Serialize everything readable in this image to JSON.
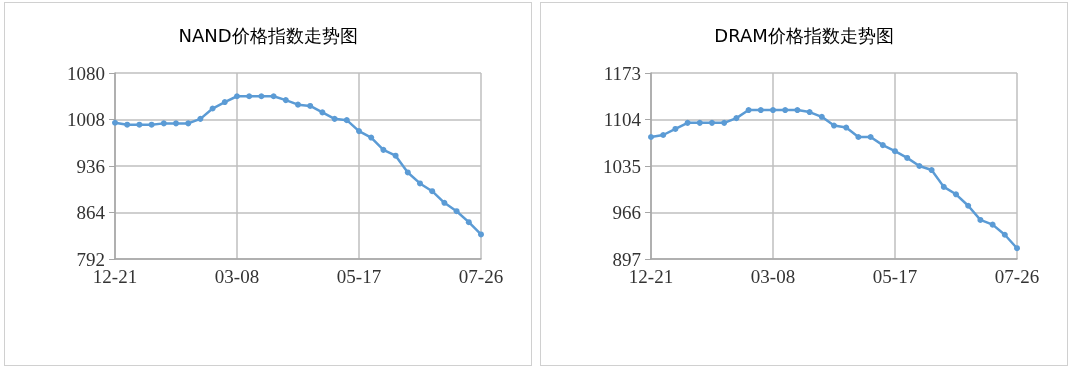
{
  "chart_data": [
    {
      "type": "line",
      "title": "NAND价格指数走势图",
      "categories": [
        "12-21",
        null,
        null,
        null,
        null,
        null,
        null,
        null,
        null,
        null,
        "03-08",
        null,
        null,
        null,
        null,
        null,
        null,
        null,
        null,
        null,
        "05-17",
        null,
        null,
        null,
        null,
        null,
        null,
        null,
        null,
        null,
        "07-26"
      ],
      "series": [
        {
          "color": "#5b9bd5",
          "values": [
            1003,
            1000,
            1000,
            1000,
            1002,
            1002,
            1002,
            1009,
            1025,
            1035,
            1044,
            1044,
            1044,
            1044,
            1038,
            1031,
            1029,
            1019,
            1009,
            1007,
            990,
            980,
            961,
            952,
            926,
            909,
            897,
            879,
            866,
            849,
            830
          ]
        }
      ],
      "ylim": [
        792,
        1080
      ],
      "yticks": [
        792,
        864,
        936,
        1008,
        1080
      ],
      "grid": true,
      "marker": "circle",
      "line_style": "solid"
    },
    {
      "type": "line",
      "title": "DRAM价格指数走势图",
      "categories": [
        "12-21",
        null,
        null,
        null,
        null,
        null,
        null,
        null,
        null,
        null,
        "03-08",
        null,
        null,
        null,
        null,
        null,
        null,
        null,
        null,
        null,
        "05-17",
        null,
        null,
        null,
        null,
        null,
        null,
        null,
        null,
        null,
        "07-26"
      ],
      "series": [
        {
          "color": "#5b9bd5",
          "values": [
            1078,
            1081,
            1090,
            1099,
            1099,
            1099,
            1099,
            1106,
            1118,
            1118,
            1118,
            1118,
            1118,
            1115,
            1108,
            1095,
            1092,
            1078,
            1078,
            1066,
            1057,
            1047,
            1035,
            1029,
            1004,
            993,
            976,
            955,
            948,
            933,
            913
          ]
        }
      ],
      "ylim": [
        897,
        1173
      ],
      "yticks": [
        897,
        966,
        1035,
        1104,
        1173
      ],
      "grid": true,
      "marker": "circle",
      "line_style": "solid"
    }
  ]
}
